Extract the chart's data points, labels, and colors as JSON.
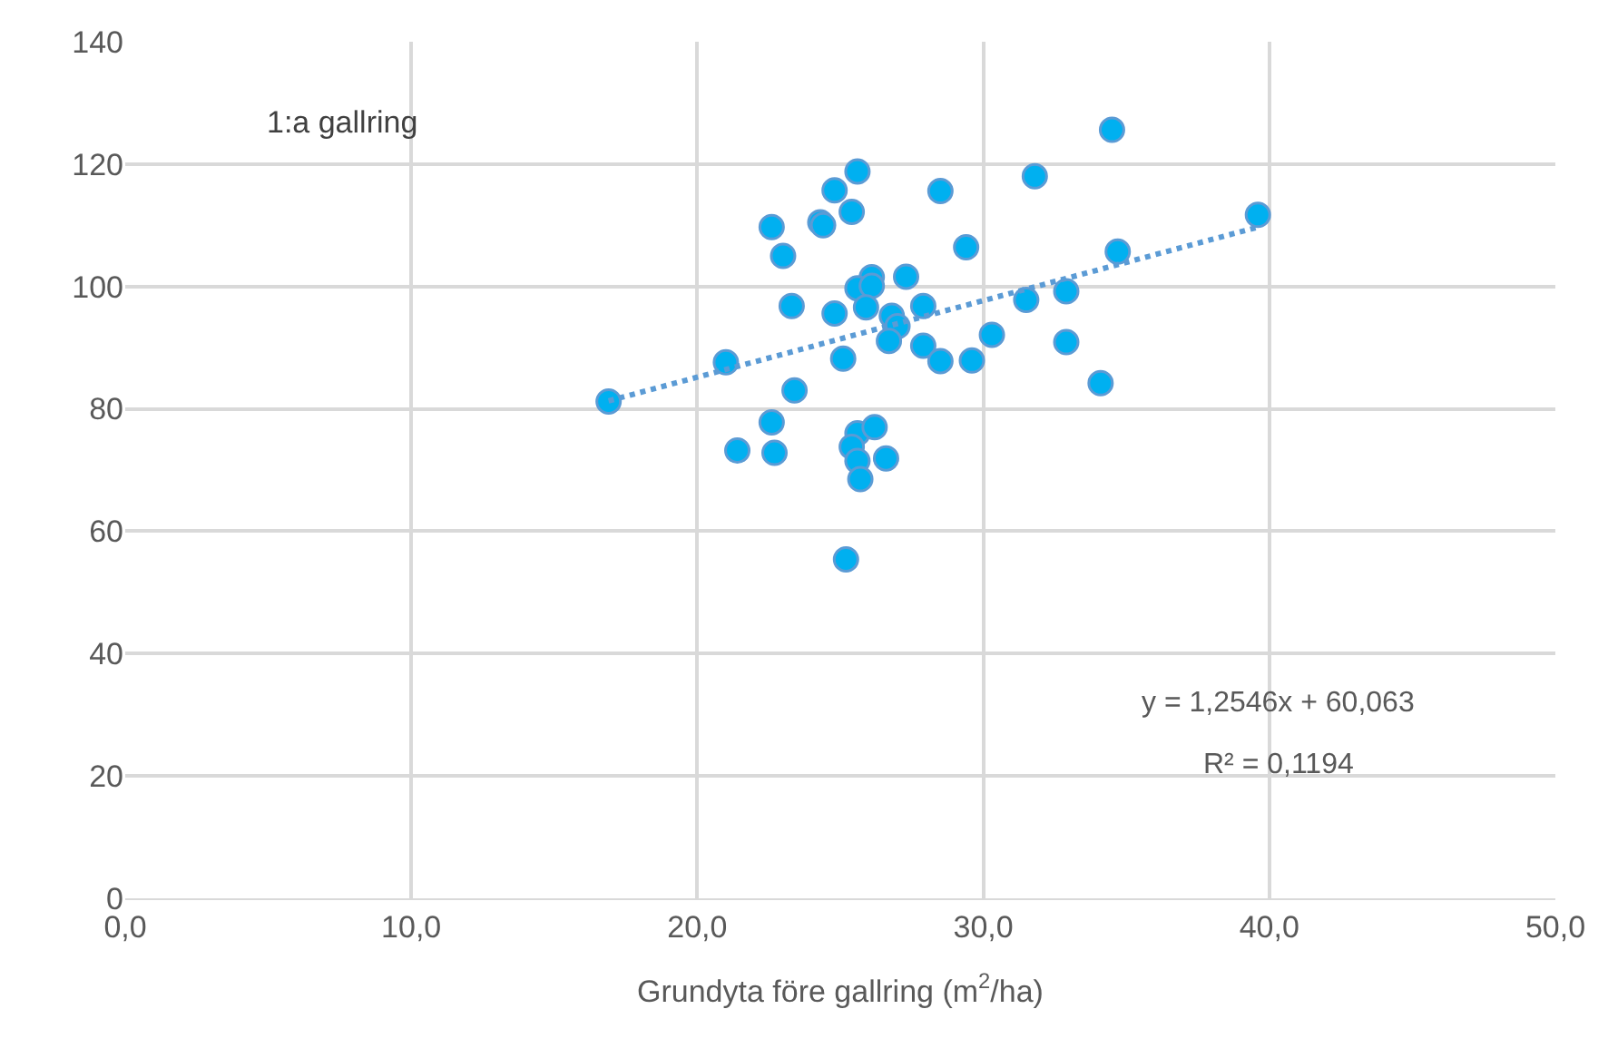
{
  "chart_data": {
    "type": "scatter",
    "xlabel": "Grundyta före gallring (m$^{2}$/ha)",
    "annotations": [
      "1:a gallring",
      "y = 1,2546x + 60,063",
      "R² = 0,1194"
    ],
    "xlim": [
      0,
      50
    ],
    "ylim": [
      0,
      140
    ],
    "xticks": [
      {
        "value": 0,
        "label": "0,0"
      },
      {
        "value": 10,
        "label": "10,0"
      },
      {
        "value": 20,
        "label": "20,0"
      },
      {
        "value": 30,
        "label": "30,0"
      },
      {
        "value": 40,
        "label": "40,0"
      },
      {
        "value": 50,
        "label": "50,0"
      }
    ],
    "yticks": [
      0,
      20,
      40,
      60,
      80,
      100,
      120,
      140
    ],
    "grid": true,
    "legend": false,
    "marker": "circle",
    "series": [
      {
        "color": "#00b0f0",
        "x": [
          25.6,
          24.8,
          28.5,
          31.8,
          25.4,
          24.3,
          24.4,
          22.6,
          23.0,
          29.4,
          34.7,
          26.1,
          27.3,
          25.6,
          26.1,
          23.3,
          24.8,
          25.9,
          26.8,
          27.9,
          31.5,
          32.9,
          27.0,
          26.7,
          27.9,
          28.5,
          29.6,
          30.3,
          32.9,
          34.1,
          25.1,
          21.0,
          16.9,
          23.4,
          22.6,
          21.4,
          22.7,
          25.6,
          26.2,
          25.4,
          25.6,
          26.6,
          25.7,
          25.2,
          34.5,
          39.6
        ],
        "values": [
          118.8,
          115.7,
          115.6,
          118.0,
          112.2,
          110.5,
          110.0,
          109.7,
          105.0,
          106.4,
          105.7,
          101.5,
          101.6,
          99.7,
          100.1,
          96.8,
          95.6,
          96.6,
          95.2,
          96.8,
          97.8,
          99.2,
          93.5,
          91.1,
          90.3,
          87.8,
          87.9,
          92.1,
          90.9,
          84.2,
          88.2,
          87.6,
          81.2,
          83.0,
          77.8,
          73.2,
          72.8,
          76.0,
          77.0,
          73.8,
          71.5,
          71.9,
          68.5,
          55.4,
          125.6,
          111.7
        ]
      },
      {
        "type": "line",
        "color": "#5b9bd5",
        "line_style": "dotted",
        "marker": "none",
        "x": [
          16.9,
          39.6
        ],
        "values": [
          81.3,
          109.7
        ]
      }
    ]
  }
}
